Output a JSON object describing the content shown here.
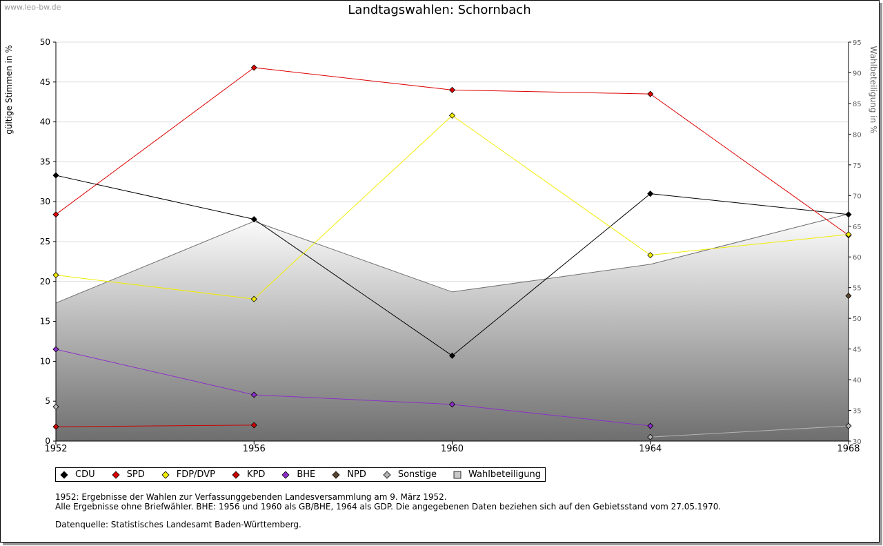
{
  "watermark": "www.leo-bw.de",
  "chart_data": {
    "type": "line",
    "title": "Landtagswahlen: Schornbach",
    "ylabel": "gültige Stimmen in %",
    "y2label": "Wahlbeteiligung in %",
    "x": [
      "1952",
      "1956",
      "1960",
      "1964",
      "1968"
    ],
    "ylim": [
      0,
      50
    ],
    "y2lim": [
      30,
      95
    ],
    "yticks": [
      0,
      5,
      10,
      15,
      20,
      25,
      30,
      35,
      40,
      45,
      50
    ],
    "y2ticks": [
      30,
      35,
      40,
      45,
      50,
      55,
      60,
      65,
      70,
      75,
      80,
      85,
      90,
      95
    ],
    "grid": true,
    "legend_position": "bottom",
    "series": [
      {
        "name": "CDU",
        "color": "#000000",
        "values": [
          33.3,
          27.8,
          10.7,
          31.0,
          28.4
        ]
      },
      {
        "name": "SPD",
        "color": "#dd0000",
        "values": [
          28.4,
          46.8,
          44.0,
          43.5,
          25.8
        ]
      },
      {
        "name": "FDP/DVP",
        "color": "#f2ed00",
        "values": [
          20.8,
          17.8,
          40.8,
          23.3,
          25.9
        ]
      },
      {
        "name": "KPD",
        "color": "#cc0000",
        "values": [
          1.8,
          2.0,
          null,
          null,
          null
        ]
      },
      {
        "name": "BHE",
        "color": "#8b2fc9",
        "values": [
          11.5,
          5.8,
          4.6,
          1.9,
          null
        ]
      },
      {
        "name": "NPD",
        "color": "#5a4530",
        "values": [
          null,
          null,
          null,
          null,
          18.2
        ]
      },
      {
        "name": "Sonstige",
        "color": "#b4b4b4",
        "values": [
          4.3,
          null,
          null,
          0.5,
          1.9
        ]
      }
    ],
    "turnout": {
      "name": "Wahlbeteiligung",
      "values": [
        52.5,
        65.8,
        54.3,
        58.8,
        67.0
      ]
    }
  },
  "notes": [
    "1952: Ergebnisse der Wahlen zur Verfassunggebenden Landesversammlung am 9. März 1952.",
    "Alle Ergebnisse ohne Briefwähler. BHE: 1956 und 1960 als GB/BHE, 1964 als GDP. Die angegebenen Daten beziehen sich auf den Gebietsstand vom 27.05.1970.",
    "",
    "Datenquelle: Statistisches Landesamt Baden-Württemberg."
  ]
}
